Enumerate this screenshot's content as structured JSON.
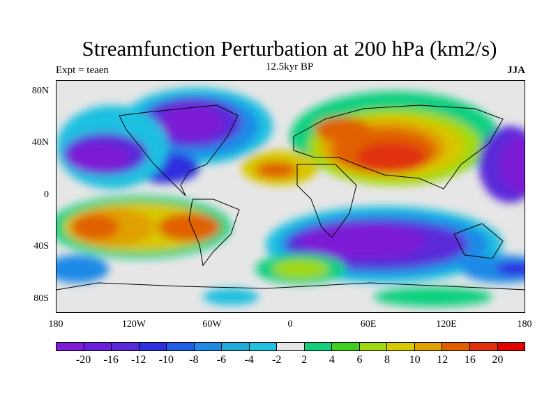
{
  "title": "Streamfunction Perturbation at 200 hPa (km2/s)",
  "subtitle_left": "Expt = teaen",
  "subtitle_center": "12.5kyr BP",
  "subtitle_right": "JJA",
  "lat_labels": [
    "80N",
    "40N",
    "0",
    "40S",
    "80S"
  ],
  "lon_labels": [
    "180",
    "120W",
    "60W",
    "0",
    "60E",
    "120E",
    "180"
  ],
  "colorbar": {
    "colors": [
      "#7d1ed6",
      "#6a1ee0",
      "#5a2ad9",
      "#2f2fe0",
      "#1f5fe6",
      "#1f8ae6",
      "#1faad9",
      "#1fc0e0",
      "#e6e6e6",
      "#10d080",
      "#40d020",
      "#a0d810",
      "#d8c800",
      "#e0a000",
      "#e06000",
      "#e03010",
      "#e00000"
    ],
    "labels": [
      "-20",
      "-16",
      "-12",
      "-10",
      "-8",
      "-6",
      "-4",
      "-2",
      "2",
      "4",
      "6",
      "8",
      "10",
      "12",
      "16",
      "20"
    ]
  }
}
